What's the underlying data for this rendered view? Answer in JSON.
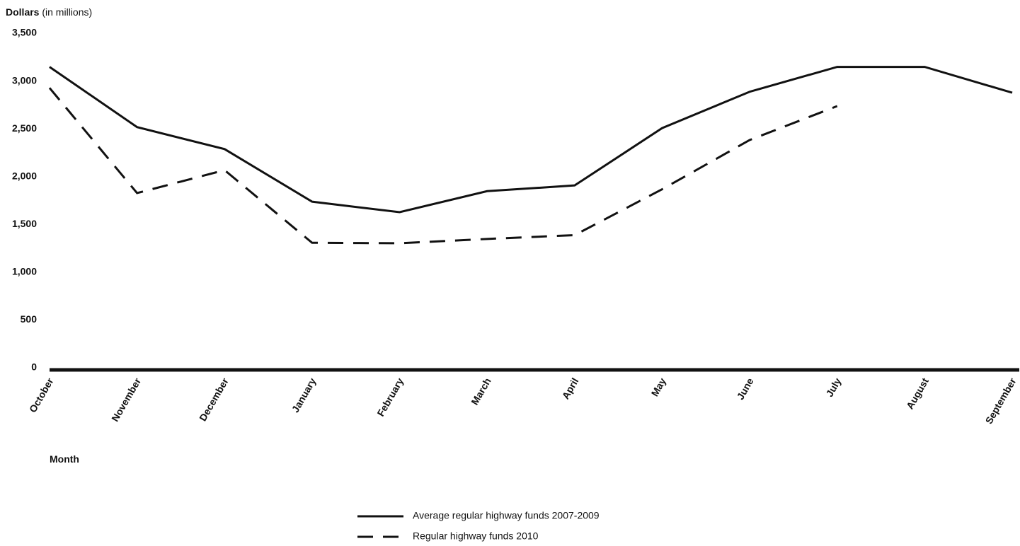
{
  "chart_data": {
    "type": "line",
    "y_label": "Dollars",
    "y_label_unit": "(in millions)",
    "x_label": "Month",
    "categories": [
      "October",
      "November",
      "December",
      "January",
      "February",
      "March",
      "April",
      "May",
      "June",
      "July",
      "August",
      "September"
    ],
    "series": [
      {
        "name": "Average regular highway funds 2007-2009",
        "color": "#111111",
        "dash": false,
        "values": [
          3170,
          2540,
          2310,
          1760,
          1650,
          1870,
          1930,
          2530,
          2910,
          3170,
          3170,
          2900
        ]
      },
      {
        "name": "Regular highway funds 2010",
        "color": "#111111",
        "dash": true,
        "values": [
          2950,
          1850,
          2090,
          1330,
          1325,
          1370,
          1410,
          1890,
          2405,
          2760,
          null,
          null
        ]
      }
    ],
    "ylim": [
      0,
      3500
    ],
    "yticks": [
      0,
      500,
      {
        "value": 1000,
        "label": "1,000"
      },
      {
        "value": 1500,
        "label": "1,500"
      },
      {
        "value": 2000,
        "label": "2,000"
      },
      {
        "value": 2500,
        "label": "2,500"
      },
      {
        "value": 3000,
        "label": "3,000"
      },
      {
        "value": 3500,
        "label": "3,500"
      }
    ],
    "grid": false
  }
}
